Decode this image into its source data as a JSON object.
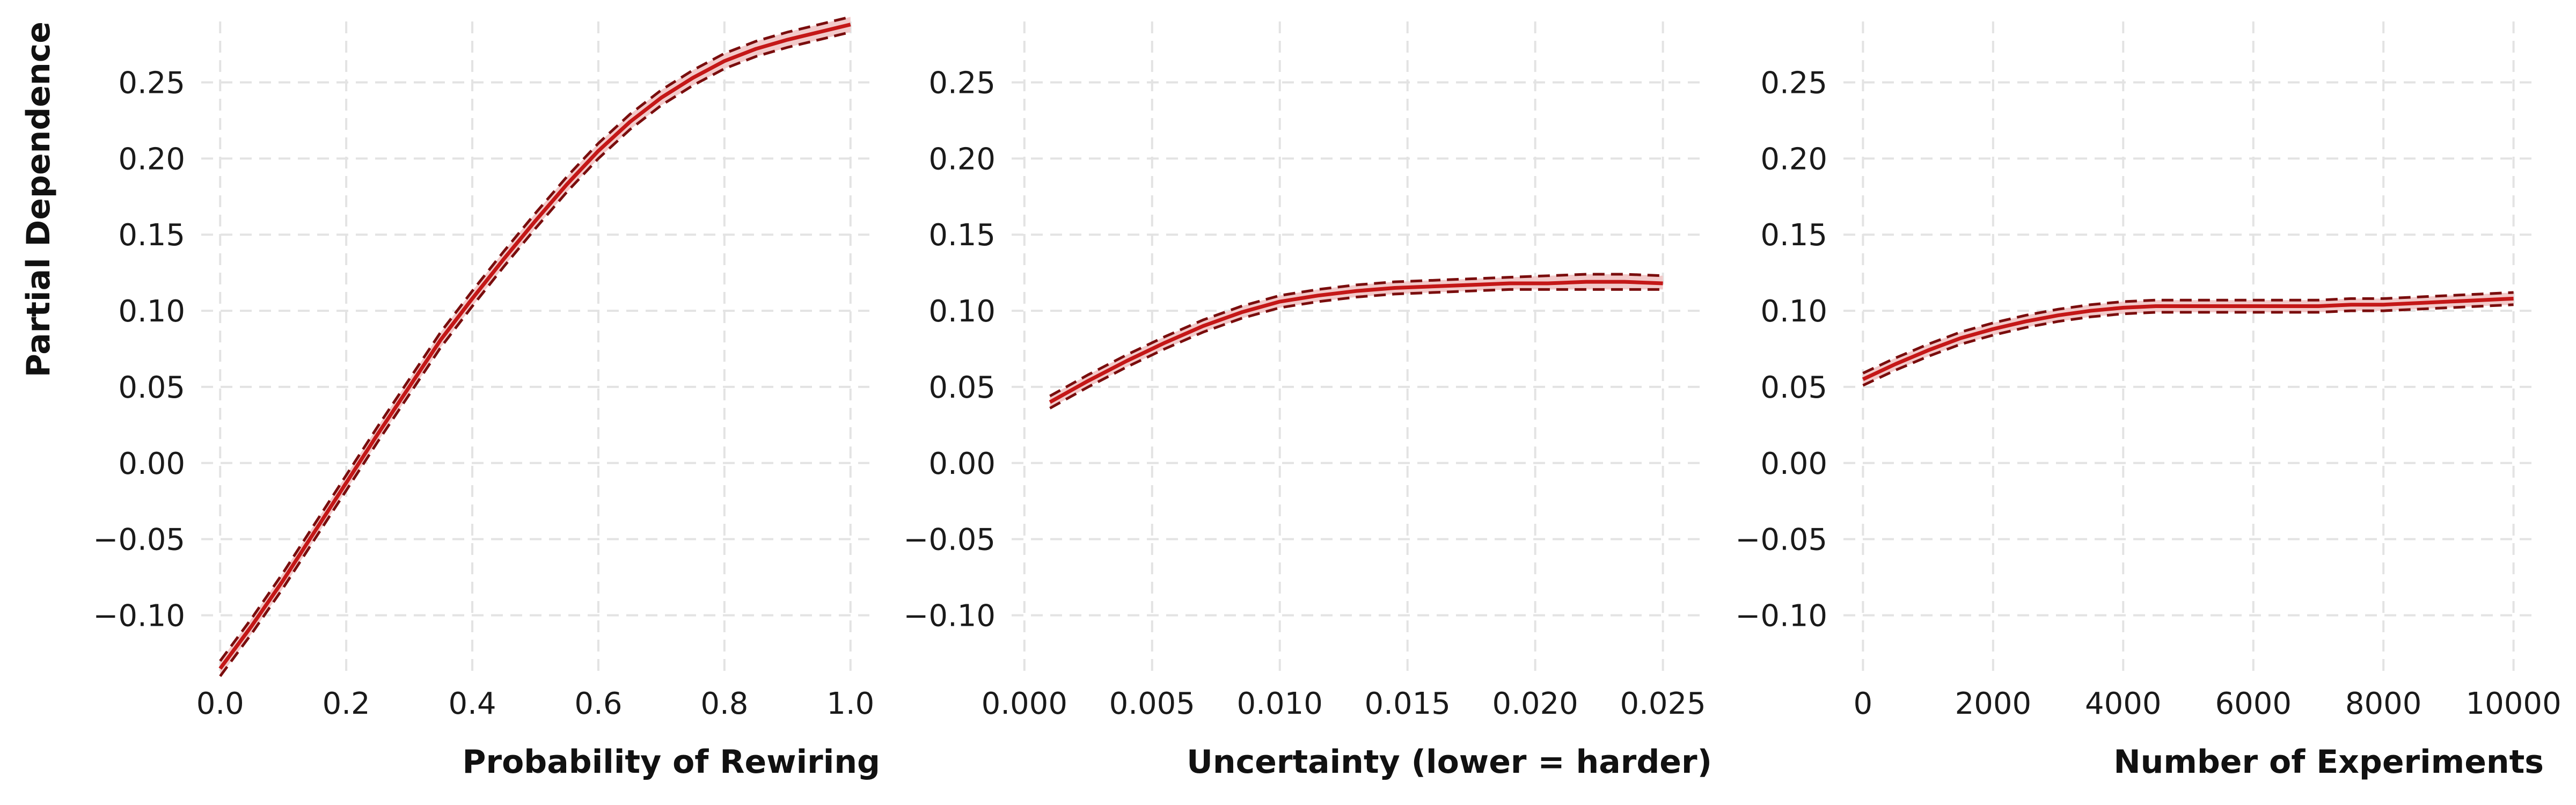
{
  "chart_data": [
    {
      "type": "line",
      "xlabel": "Probability of Rewiring",
      "ylabel": "Partial Dependence",
      "xlim": [
        -0.03,
        1.03
      ],
      "ylim": [
        -0.14,
        0.29
      ],
      "xticks": [
        0.0,
        0.2,
        0.4,
        0.6,
        0.8,
        1.0
      ],
      "xtick_labels": [
        "0.0",
        "0.2",
        "0.4",
        "0.6",
        "0.8",
        "1.0"
      ],
      "yticks": [
        -0.1,
        -0.05,
        0.0,
        0.05,
        0.1,
        0.15,
        0.2,
        0.25
      ],
      "ytick_labels": [
        "−0.10",
        "−0.05",
        "0.00",
        "0.05",
        "0.10",
        "0.15",
        "0.20",
        "0.25"
      ],
      "grid": true,
      "x": [
        0.0,
        0.05,
        0.1,
        0.15,
        0.2,
        0.25,
        0.3,
        0.35,
        0.4,
        0.45,
        0.5,
        0.55,
        0.6,
        0.65,
        0.7,
        0.75,
        0.8,
        0.85,
        0.9,
        0.95,
        1.0
      ],
      "series": [
        {
          "values": [
            -0.135,
            -0.107,
            -0.077,
            -0.045,
            -0.013,
            0.019,
            0.05,
            0.081,
            0.108,
            0.134,
            0.159,
            0.183,
            0.205,
            0.224,
            0.24,
            0.253,
            0.264,
            0.272,
            0.278,
            0.283,
            0.288
          ]
        },
        {
          "values": [
            -0.13,
            -0.102,
            -0.072,
            -0.04,
            -0.008,
            0.024,
            0.055,
            0.086,
            0.113,
            0.139,
            0.164,
            0.188,
            0.21,
            0.229,
            0.245,
            0.258,
            0.269,
            0.277,
            0.283,
            0.288,
            0.293
          ]
        },
        {
          "values": [
            -0.14,
            -0.112,
            -0.082,
            -0.05,
            -0.018,
            0.014,
            0.045,
            0.076,
            0.103,
            0.129,
            0.154,
            0.178,
            0.2,
            0.219,
            0.235,
            0.248,
            0.259,
            0.267,
            0.273,
            0.278,
            0.283
          ]
        }
      ]
    },
    {
      "type": "line",
      "xlabel": "Uncertainty (lower = harder)",
      "ylabel": "",
      "xlim": [
        -0.0005,
        0.0265
      ],
      "ylim": [
        -0.14,
        0.29
      ],
      "xticks": [
        0.0,
        0.005,
        0.01,
        0.015,
        0.02,
        0.025
      ],
      "xtick_labels": [
        "0.000",
        "0.005",
        "0.010",
        "0.015",
        "0.020",
        "0.025"
      ],
      "yticks": [
        -0.1,
        -0.05,
        0.0,
        0.05,
        0.1,
        0.15,
        0.2,
        0.25
      ],
      "ytick_labels": [
        "−0.10",
        "−0.05",
        "0.00",
        "0.05",
        "0.10",
        "0.15",
        "0.20",
        "0.25"
      ],
      "grid": true,
      "x": [
        0.001,
        0.0025,
        0.004,
        0.0055,
        0.007,
        0.0085,
        0.01,
        0.0115,
        0.013,
        0.0145,
        0.016,
        0.0175,
        0.019,
        0.0205,
        0.022,
        0.0235,
        0.025
      ],
      "series": [
        {
          "values": [
            0.04,
            0.054,
            0.067,
            0.079,
            0.09,
            0.099,
            0.106,
            0.11,
            0.113,
            0.115,
            0.116,
            0.117,
            0.118,
            0.118,
            0.119,
            0.119,
            0.118
          ]
        },
        {
          "values": [
            0.044,
            0.058,
            0.071,
            0.083,
            0.094,
            0.103,
            0.11,
            0.114,
            0.117,
            0.119,
            0.12,
            0.121,
            0.122,
            0.123,
            0.124,
            0.124,
            0.123
          ]
        },
        {
          "values": [
            0.036,
            0.05,
            0.063,
            0.075,
            0.086,
            0.095,
            0.102,
            0.106,
            0.109,
            0.111,
            0.112,
            0.113,
            0.114,
            0.114,
            0.114,
            0.114,
            0.114
          ]
        }
      ]
    },
    {
      "type": "line",
      "xlabel": "Number of Experiments",
      "ylabel": "",
      "xlim": [
        -300,
        10300
      ],
      "ylim": [
        -0.14,
        0.29
      ],
      "xticks": [
        0,
        2000,
        4000,
        6000,
        8000,
        10000
      ],
      "xtick_labels": [
        "0",
        "2000",
        "4000",
        "6000",
        "8000",
        "10000"
      ],
      "yticks": [
        -0.1,
        -0.05,
        0.0,
        0.05,
        0.1,
        0.15,
        0.2,
        0.25
      ],
      "ytick_labels": [
        "−0.10",
        "−0.05",
        "0.00",
        "0.05",
        "0.10",
        "0.15",
        "0.20",
        "0.25"
      ],
      "grid": true,
      "x": [
        0,
        500,
        1000,
        1500,
        2000,
        2500,
        3000,
        3500,
        4000,
        4500,
        5000,
        5500,
        6000,
        6500,
        7000,
        7500,
        8000,
        8500,
        9000,
        9500,
        10000
      ],
      "series": [
        {
          "values": [
            0.055,
            0.065,
            0.074,
            0.082,
            0.088,
            0.093,
            0.097,
            0.1,
            0.102,
            0.103,
            0.103,
            0.103,
            0.103,
            0.103,
            0.103,
            0.104,
            0.104,
            0.105,
            0.106,
            0.107,
            0.108
          ]
        },
        {
          "values": [
            0.059,
            0.069,
            0.078,
            0.086,
            0.092,
            0.097,
            0.101,
            0.104,
            0.106,
            0.107,
            0.107,
            0.107,
            0.107,
            0.107,
            0.107,
            0.108,
            0.108,
            0.109,
            0.11,
            0.111,
            0.112
          ]
        },
        {
          "values": [
            0.051,
            0.061,
            0.07,
            0.078,
            0.084,
            0.089,
            0.093,
            0.096,
            0.098,
            0.099,
            0.099,
            0.099,
            0.099,
            0.099,
            0.099,
            0.1,
            0.1,
            0.101,
            0.102,
            0.103,
            0.104
          ]
        }
      ]
    }
  ]
}
